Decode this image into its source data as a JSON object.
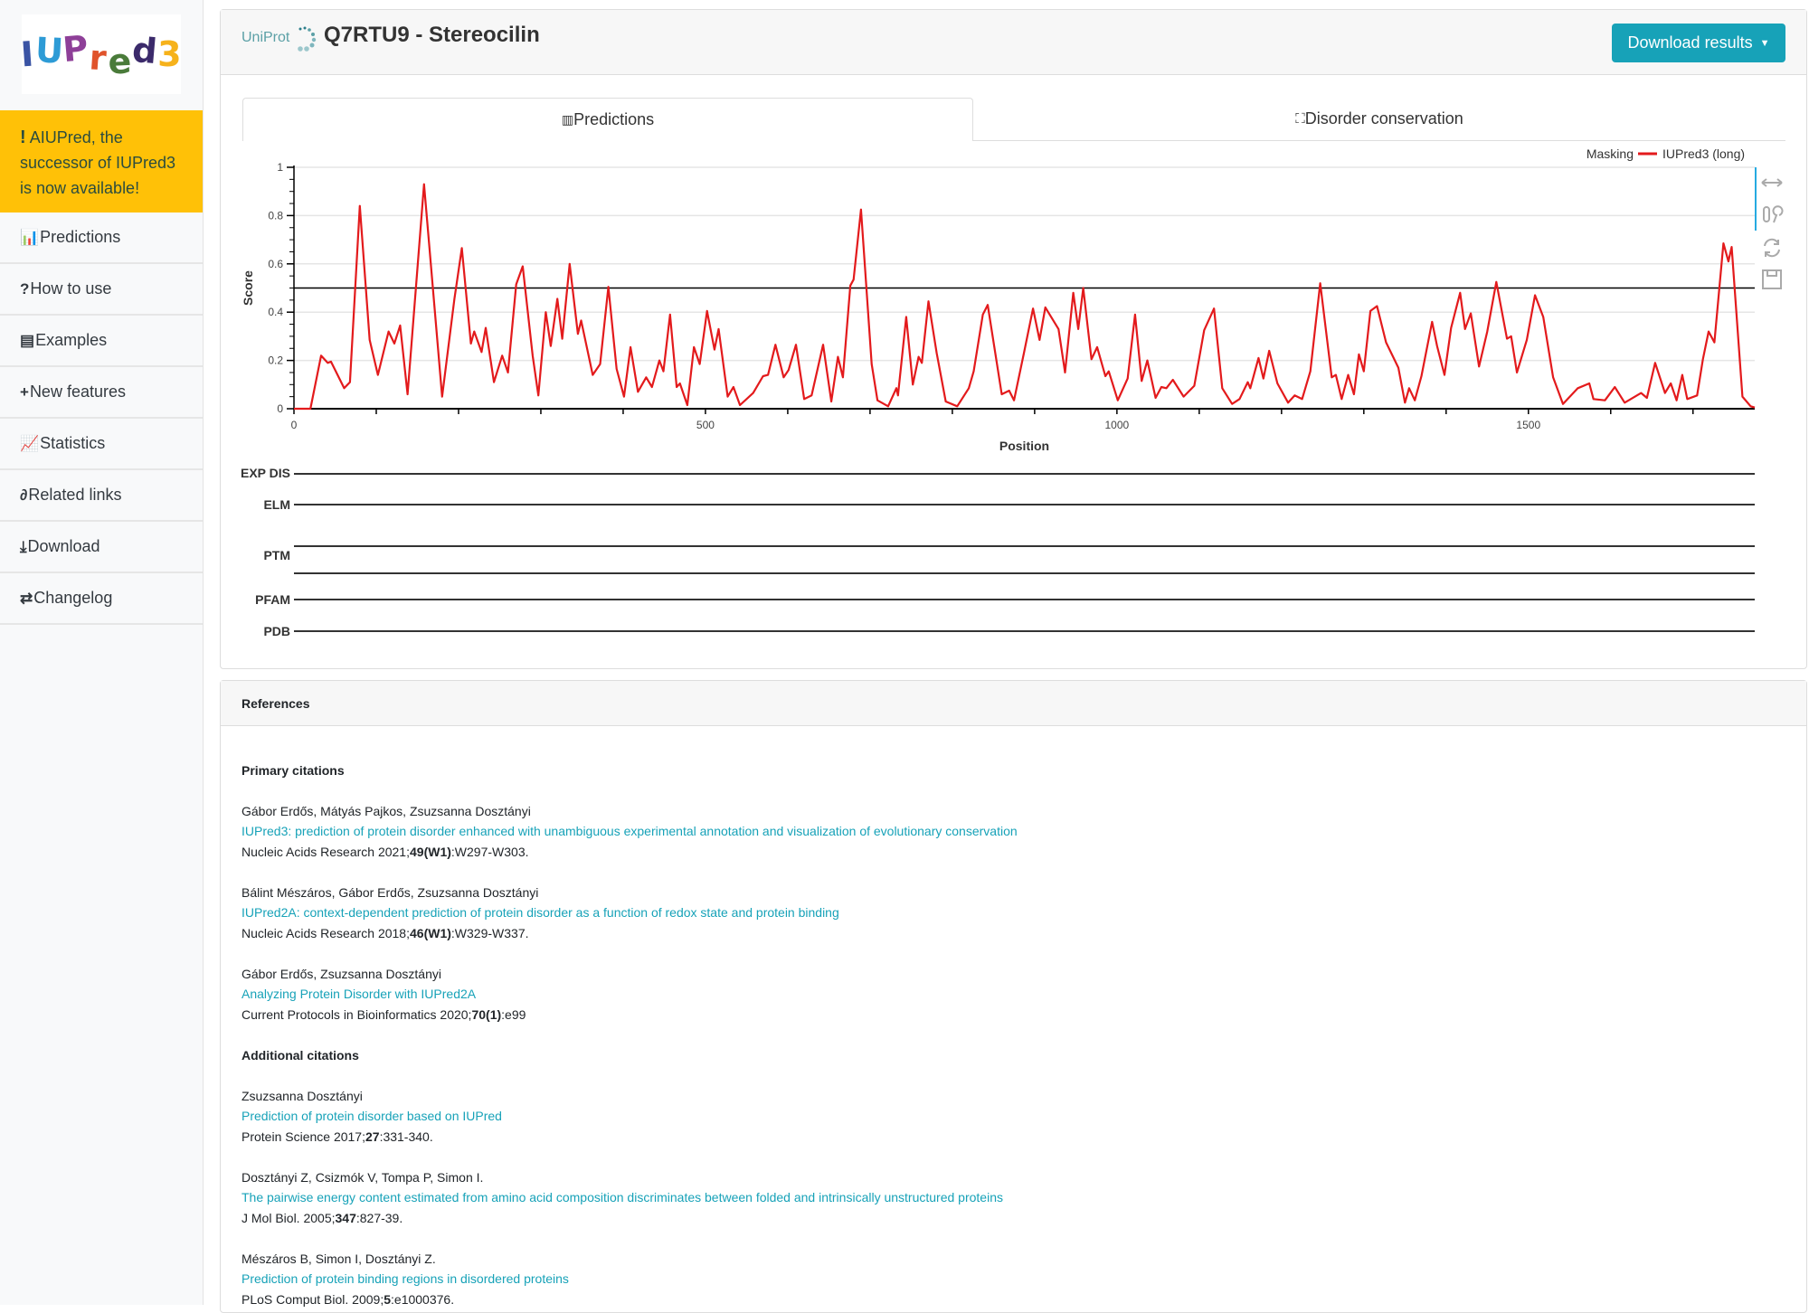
{
  "logo": {
    "text": "IUPred3",
    "letters": [
      {
        "c": "I",
        "color": "#3a54a4"
      },
      {
        "c": "U",
        "color": "#2d9bd6"
      },
      {
        "c": "P",
        "color": "#8e3f98"
      },
      {
        "c": "r",
        "color": "#e0532b"
      },
      {
        "c": "e",
        "color": "#4a7b3a"
      },
      {
        "c": "d",
        "color": "#3b2a6b"
      },
      {
        "c": "3",
        "color": "#f6b21b"
      }
    ]
  },
  "banner": {
    "icon": "exclamation-icon",
    "mark": "!",
    "text": "AIUPred, the successor of IUPred3 is now available!",
    "bg": "#ffc107"
  },
  "sidebar": {
    "items": [
      {
        "label": "Predictions",
        "icon": "bar-chart-icon",
        "glyph": "📊"
      },
      {
        "label": "How to use",
        "icon": "question-icon",
        "glyph": "?"
      },
      {
        "label": "Examples",
        "icon": "book-icon",
        "glyph": "▤"
      },
      {
        "label": "New features",
        "icon": "plus-icon",
        "glyph": "+"
      },
      {
        "label": "Statistics",
        "icon": "line-chart-icon",
        "glyph": "📈"
      },
      {
        "label": "Related links",
        "icon": "link-icon",
        "glyph": "∂"
      },
      {
        "label": "Download",
        "icon": "download-icon",
        "glyph": "⤓"
      },
      {
        "label": "Changelog",
        "icon": "exchange-icon",
        "glyph": "⇄"
      }
    ]
  },
  "header": {
    "source": "UniProt",
    "title": "Q7RTU9 - Stereocilin",
    "download_label": "Download results",
    "accent": "#17a2b8"
  },
  "tabs": [
    {
      "label": "Predictions",
      "icon": "bar-chart-icon",
      "active": true
    },
    {
      "label": "Disorder conservation",
      "icon": "sitemap-icon",
      "active": false
    }
  ],
  "chart_data": {
    "type": "line",
    "xlabel": "Position",
    "ylabel": "Score",
    "xlim": [
      0,
      1775
    ],
    "ylim": [
      0,
      1
    ],
    "xticks": [
      0,
      500,
      1000,
      1500
    ],
    "yticks": [
      0,
      0.2,
      0.4,
      0.6,
      0.8,
      1
    ],
    "ytick_labels": [
      "0",
      "0.2",
      "0.4",
      "0.6",
      "0.8",
      "1"
    ],
    "xtick_labels": [
      "0",
      "500",
      "1000",
      "1500"
    ],
    "grid": true,
    "threshold": 0.5,
    "legend": {
      "placement": "top-right",
      "masking_label": "Masking",
      "series_label": "IUPred3 (long)"
    },
    "series": [
      {
        "name": "IUPred3 (long)",
        "color": "#e31a1c",
        "points": [
          [
            0,
            0
          ],
          [
            20,
            0
          ],
          [
            33,
            0.22
          ],
          [
            41,
            0.19
          ],
          [
            45,
            0.195
          ],
          [
            61,
            0.085
          ],
          [
            68,
            0.11
          ],
          [
            80,
            0.84
          ],
          [
            92,
            0.285
          ],
          [
            102,
            0.14
          ],
          [
            115,
            0.32
          ],
          [
            122,
            0.27
          ],
          [
            129,
            0.345
          ],
          [
            138,
            0.06
          ],
          [
            158,
            0.93
          ],
          [
            180,
            0.05
          ],
          [
            195,
            0.455
          ],
          [
            204,
            0.665
          ],
          [
            215,
            0.27
          ],
          [
            219,
            0.32
          ],
          [
            228,
            0.235
          ],
          [
            233,
            0.335
          ],
          [
            243,
            0.11
          ],
          [
            253,
            0.22
          ],
          [
            260,
            0.15
          ],
          [
            270,
            0.515
          ],
          [
            278,
            0.59
          ],
          [
            290,
            0.22
          ],
          [
            297,
            0.055
          ],
          [
            306,
            0.4
          ],
          [
            312,
            0.26
          ],
          [
            320,
            0.455
          ],
          [
            326,
            0.29
          ],
          [
            335,
            0.6
          ],
          [
            345,
            0.31
          ],
          [
            349,
            0.365
          ],
          [
            363,
            0.14
          ],
          [
            372,
            0.185
          ],
          [
            382,
            0.505
          ],
          [
            392,
            0.165
          ],
          [
            401,
            0.05
          ],
          [
            409,
            0.255
          ],
          [
            418,
            0.07
          ],
          [
            428,
            0.13
          ],
          [
            435,
            0.09
          ],
          [
            444,
            0.2
          ],
          [
            449,
            0.155
          ],
          [
            457,
            0.39
          ],
          [
            465,
            0.09
          ],
          [
            469,
            0.105
          ],
          [
            478,
            0.015
          ],
          [
            486,
            0.255
          ],
          [
            493,
            0.185
          ],
          [
            502,
            0.405
          ],
          [
            511,
            0.245
          ],
          [
            516,
            0.33
          ],
          [
            527,
            0.05
          ],
          [
            534,
            0.09
          ],
          [
            542,
            0.015
          ],
          [
            558,
            0.065
          ],
          [
            570,
            0.135
          ],
          [
            576,
            0.14
          ],
          [
            585,
            0.265
          ],
          [
            595,
            0.13
          ],
          [
            601,
            0.16
          ],
          [
            610,
            0.265
          ],
          [
            620,
            0.04
          ],
          [
            629,
            0.055
          ],
          [
            643,
            0.265
          ],
          [
            653,
            0.03
          ],
          [
            661,
            0.215
          ],
          [
            667,
            0.13
          ],
          [
            676,
            0.51
          ],
          [
            680,
            0.535
          ],
          [
            689,
            0.825
          ],
          [
            702,
            0.185
          ],
          [
            709,
            0.035
          ],
          [
            722,
            0.01
          ],
          [
            732,
            0.085
          ],
          [
            734,
            0.055
          ],
          [
            744,
            0.38
          ],
          [
            752,
            0.1
          ],
          [
            759,
            0.215
          ],
          [
            763,
            0.19
          ],
          [
            771,
            0.445
          ],
          [
            781,
            0.23
          ],
          [
            792,
            0.03
          ],
          [
            806,
            0.01
          ],
          [
            820,
            0.085
          ],
          [
            826,
            0.155
          ],
          [
            837,
            0.39
          ],
          [
            843,
            0.43
          ],
          [
            860,
            0.06
          ],
          [
            869,
            0.075
          ],
          [
            875,
            0.035
          ],
          [
            887,
            0.23
          ],
          [
            898,
            0.415
          ],
          [
            906,
            0.285
          ],
          [
            913,
            0.42
          ],
          [
            929,
            0.33
          ],
          [
            937,
            0.15
          ],
          [
            947,
            0.48
          ],
          [
            953,
            0.33
          ],
          [
            959,
            0.5
          ],
          [
            969,
            0.205
          ],
          [
            976,
            0.255
          ],
          [
            986,
            0.135
          ],
          [
            990,
            0.155
          ],
          [
            1001,
            0.035
          ],
          [
            1013,
            0.125
          ],
          [
            1022,
            0.39
          ],
          [
            1030,
            0.115
          ],
          [
            1037,
            0.2
          ],
          [
            1047,
            0.045
          ],
          [
            1054,
            0.09
          ],
          [
            1060,
            0.085
          ],
          [
            1068,
            0.12
          ],
          [
            1081,
            0.05
          ],
          [
            1094,
            0.095
          ],
          [
            1106,
            0.325
          ],
          [
            1118,
            0.415
          ],
          [
            1128,
            0.085
          ],
          [
            1140,
            0.02
          ],
          [
            1149,
            0.04
          ],
          [
            1159,
            0.11
          ],
          [
            1162,
            0.085
          ],
          [
            1172,
            0.21
          ],
          [
            1178,
            0.125
          ],
          [
            1185,
            0.24
          ],
          [
            1195,
            0.105
          ],
          [
            1208,
            0.025
          ],
          [
            1216,
            0.055
          ],
          [
            1225,
            0.04
          ],
          [
            1235,
            0.155
          ],
          [
            1247,
            0.52
          ],
          [
            1261,
            0.13
          ],
          [
            1266,
            0.14
          ],
          [
            1273,
            0.04
          ],
          [
            1281,
            0.14
          ],
          [
            1288,
            0.06
          ],
          [
            1294,
            0.225
          ],
          [
            1300,
            0.155
          ],
          [
            1308,
            0.405
          ],
          [
            1316,
            0.425
          ],
          [
            1327,
            0.275
          ],
          [
            1342,
            0.17
          ],
          [
            1350,
            0.025
          ],
          [
            1355,
            0.085
          ],
          [
            1362,
            0.035
          ],
          [
            1370,
            0.135
          ],
          [
            1383,
            0.36
          ],
          [
            1389,
            0.26
          ],
          [
            1398,
            0.14
          ],
          [
            1406,
            0.335
          ],
          [
            1417,
            0.48
          ],
          [
            1423,
            0.33
          ],
          [
            1430,
            0.395
          ],
          [
            1440,
            0.175
          ],
          [
            1450,
            0.32
          ],
          [
            1461,
            0.525
          ],
          [
            1474,
            0.29
          ],
          [
            1479,
            0.3
          ],
          [
            1486,
            0.15
          ],
          [
            1498,
            0.285
          ],
          [
            1508,
            0.47
          ],
          [
            1518,
            0.38
          ],
          [
            1530,
            0.13
          ],
          [
            1542,
            0.02
          ],
          [
            1560,
            0.085
          ],
          [
            1574,
            0.105
          ],
          [
            1579,
            0.04
          ],
          [
            1593,
            0.035
          ],
          [
            1605,
            0.09
          ],
          [
            1617,
            0.025
          ],
          [
            1637,
            0.065
          ],
          [
            1644,
            0.045
          ],
          [
            1654,
            0.19
          ],
          [
            1666,
            0.065
          ],
          [
            1673,
            0.105
          ],
          [
            1680,
            0.035
          ],
          [
            1687,
            0.14
          ],
          [
            1693,
            0.04
          ],
          [
            1705,
            0.055
          ],
          [
            1712,
            0.205
          ],
          [
            1719,
            0.32
          ],
          [
            1726,
            0.275
          ],
          [
            1737,
            0.685
          ],
          [
            1743,
            0.61
          ],
          [
            1747,
            0.67
          ],
          [
            1760,
            0.05
          ],
          [
            1770,
            0.01
          ],
          [
            1775,
            0.005
          ]
        ]
      }
    ],
    "tracks": [
      "EXP DIS",
      "ELM",
      "PTM",
      "PFAM",
      "PDB"
    ]
  },
  "toolbar": [
    {
      "icon": "pan-icon"
    },
    {
      "icon": "wheel-zoom-icon"
    },
    {
      "icon": "reset-icon"
    },
    {
      "icon": "save-icon"
    }
  ],
  "references": {
    "title": "References",
    "primary_heading": "Primary citations",
    "primary": [
      {
        "authors": "Gábor Erdős, Mátyás Pajkos, Zsuzsanna Dosztányi",
        "title": "IUPred3: prediction of protein disorder enhanced with unambiguous experimental annotation and visualization of evolutionary conservation",
        "journal": "Nucleic Acids Research 2021;",
        "vol": "49(W1)",
        "pages": ":W297-W303."
      },
      {
        "authors": "Bálint Mészáros, Gábor Erdős, Zsuzsanna Dosztányi",
        "title": "IUPred2A: context-dependent prediction of protein disorder as a function of redox state and protein binding",
        "journal": "Nucleic Acids Research 2018;",
        "vol": "46(W1)",
        "pages": ":W329-W337."
      },
      {
        "authors": "Gábor Erdős, Zsuzsanna Dosztányi",
        "title": "Analyzing Protein Disorder with IUPred2A",
        "journal": "Current Protocols in Bioinformatics 2020;",
        "vol": "70(1)",
        "pages": ":e99"
      }
    ],
    "additional_heading": "Additional citations",
    "additional": [
      {
        "authors": "Zsuzsanna Dosztányi",
        "title": "Prediction of protein disorder based on IUPred",
        "journal": "Protein Science 2017;",
        "vol": "27",
        "pages": ":331-340."
      },
      {
        "authors": "Dosztányi Z, Csizmók V, Tompa P, Simon I.",
        "title": "The pairwise energy content estimated from amino acid composition discriminates between folded and intrinsically unstructured proteins",
        "journal": "J Mol Biol. 2005;",
        "vol": "347",
        "pages": ":827-39."
      },
      {
        "authors": "Mészáros B, Simon I, Dosztányi Z.",
        "title": "Prediction of protein binding regions in disordered proteins",
        "journal": "PLoS Comput Biol. 2009;",
        "vol": "5",
        "pages": ":e1000376."
      }
    ]
  }
}
